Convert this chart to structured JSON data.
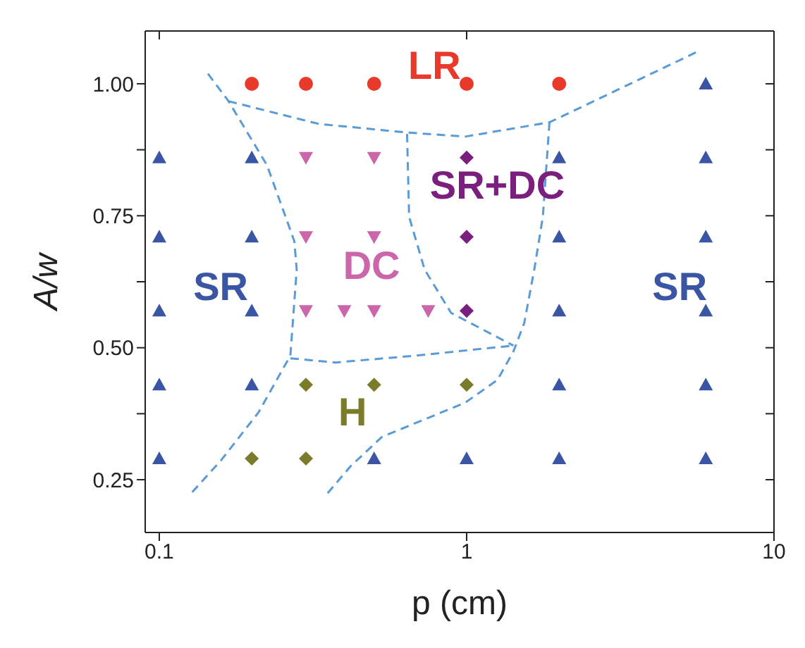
{
  "chart_data": {
    "type": "scatter",
    "xlabel": "p (cm)",
    "ylabel": "A/w",
    "log": "x",
    "xlim": [
      0.09,
      10
    ],
    "xticks": [
      0.1,
      1,
      10
    ],
    "ylim": [
      0.15,
      1.1
    ],
    "yticks": [
      {
        "value": 0.25,
        "label": "0.25"
      },
      {
        "value": 0.375,
        "label": null
      },
      {
        "value": 0.5,
        "label": "0.50"
      },
      {
        "value": 0.625,
        "label": null
      },
      {
        "value": 0.75,
        "label": "0.75"
      },
      {
        "value": 0.875,
        "label": null
      },
      {
        "value": 1,
        "label": "1.00"
      }
    ],
    "series": [
      {
        "name": "LR",
        "type": "scatter",
        "marker": "circle",
        "color": "#e8392a",
        "x": [
          0.2,
          0.3,
          0.5,
          1,
          2
        ],
        "values": [
          1,
          1,
          1,
          1,
          1
        ]
      },
      {
        "name": "SR",
        "type": "scatter",
        "marker": "triangle",
        "color": "#3a55a4",
        "x": [
          6,
          0.1,
          0.2,
          2,
          6,
          0.1,
          0.2,
          2,
          6,
          0.1,
          0.2,
          2,
          6,
          0.1,
          0.2,
          2,
          6,
          0.1,
          0.5,
          1,
          2,
          6
        ],
        "values": [
          1,
          0.86,
          0.86,
          0.86,
          0.86,
          0.71,
          0.71,
          0.71,
          0.71,
          0.57,
          0.57,
          0.57,
          0.57,
          0.43,
          0.43,
          0.43,
          0.43,
          0.29,
          0.29,
          0.29,
          0.29,
          0.29
        ]
      },
      {
        "name": "DC",
        "type": "scatter",
        "marker": "triangle-down",
        "color": "#cc66aa",
        "x": [
          0.3,
          0.5,
          0.3,
          0.5,
          0.3,
          0.4,
          0.5,
          0.75
        ],
        "values": [
          0.86,
          0.86,
          0.71,
          0.71,
          0.57,
          0.57,
          0.57,
          0.57
        ]
      },
      {
        "name": "SR+DC",
        "type": "scatter",
        "marker": "diamond",
        "color": "#7b1f7e",
        "x": [
          1,
          1,
          1
        ],
        "values": [
          0.86,
          0.71,
          0.57
        ]
      },
      {
        "name": "H",
        "type": "scatter",
        "marker": "diamond",
        "color": "#7b7c2a",
        "x": [
          0.3,
          0.5,
          1,
          0.2,
          0.3
        ],
        "values": [
          0.43,
          0.43,
          0.43,
          0.29,
          0.29
        ]
      },
      {
        "type": "line",
        "line_style": "dashed",
        "marker": "none",
        "color": "#5b9bd5",
        "x": [
          0.168,
          0.33,
          0.63,
          0.99,
          1.86,
          5.6
        ],
        "values": [
          0.967,
          0.924,
          0.908,
          0.9,
          0.927,
          1.06
        ]
      },
      {
        "type": "line",
        "line_style": "dashed",
        "marker": "none",
        "color": "#5b9bd5",
        "x": [
          0.144,
          0.168,
          0.224,
          0.275,
          0.28,
          0.267,
          0.21,
          0.159,
          0.126
        ],
        "values": [
          1.019,
          0.967,
          0.846,
          0.702,
          0.648,
          0.485,
          0.377,
          0.287,
          0.222
        ]
      },
      {
        "type": "line",
        "line_style": "dashed",
        "marker": "none",
        "color": "#5b9bd5",
        "x": [
          0.64,
          0.65,
          0.73,
          0.89,
          1.42
        ],
        "values": [
          0.905,
          0.748,
          0.648,
          0.566,
          0.504
        ]
      },
      {
        "type": "line",
        "line_style": "dashed",
        "marker": "none",
        "color": "#5b9bd5",
        "x": [
          0.267,
          0.375,
          0.68,
          1.42
        ],
        "values": [
          0.48,
          0.472,
          0.485,
          0.504
        ]
      },
      {
        "type": "line",
        "line_style": "dashed",
        "marker": "none",
        "color": "#5b9bd5",
        "x": [
          1.86,
          1.77,
          1.66,
          1.54,
          1.42,
          1.26,
          0.99,
          0.53,
          0.42,
          0.35
        ],
        "values": [
          0.927,
          0.748,
          0.648,
          0.547,
          0.493,
          0.439,
          0.396,
          0.331,
          0.276,
          0.222
        ]
      }
    ]
  }
}
